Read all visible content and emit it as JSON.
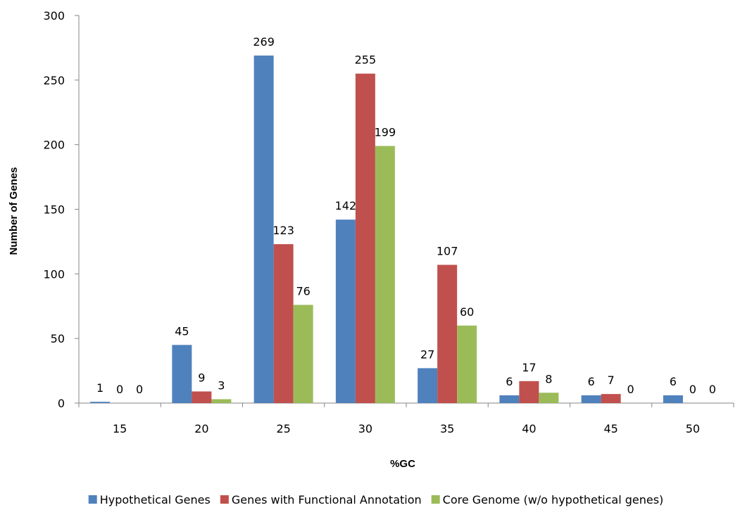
{
  "chart_data": {
    "type": "bar",
    "categories": [
      "15",
      "20",
      "25",
      "30",
      "35",
      "40",
      "45",
      "50"
    ],
    "series": [
      {
        "name": "Hypothetical Genes",
        "color": "#4F81BD",
        "values": [
          1,
          45,
          269,
          142,
          27,
          6,
          6,
          6
        ]
      },
      {
        "name": "Genes with Functional Annotation",
        "color": "#C0504D",
        "values": [
          0,
          9,
          123,
          255,
          107,
          17,
          7,
          0
        ]
      },
      {
        "name": "Core Genome (w/o hypothetical genes)",
        "color": "#9BBB59",
        "values": [
          0,
          3,
          76,
          199,
          60,
          8,
          0,
          0
        ]
      }
    ],
    "title": "",
    "xlabel": "%GC",
    "ylabel": "Number of Genes",
    "ylim": [
      0,
      300
    ],
    "yticks": [
      "0",
      "50",
      "100",
      "150",
      "200",
      "250",
      "300"
    ],
    "grid": false,
    "legend_position": "bottom"
  }
}
